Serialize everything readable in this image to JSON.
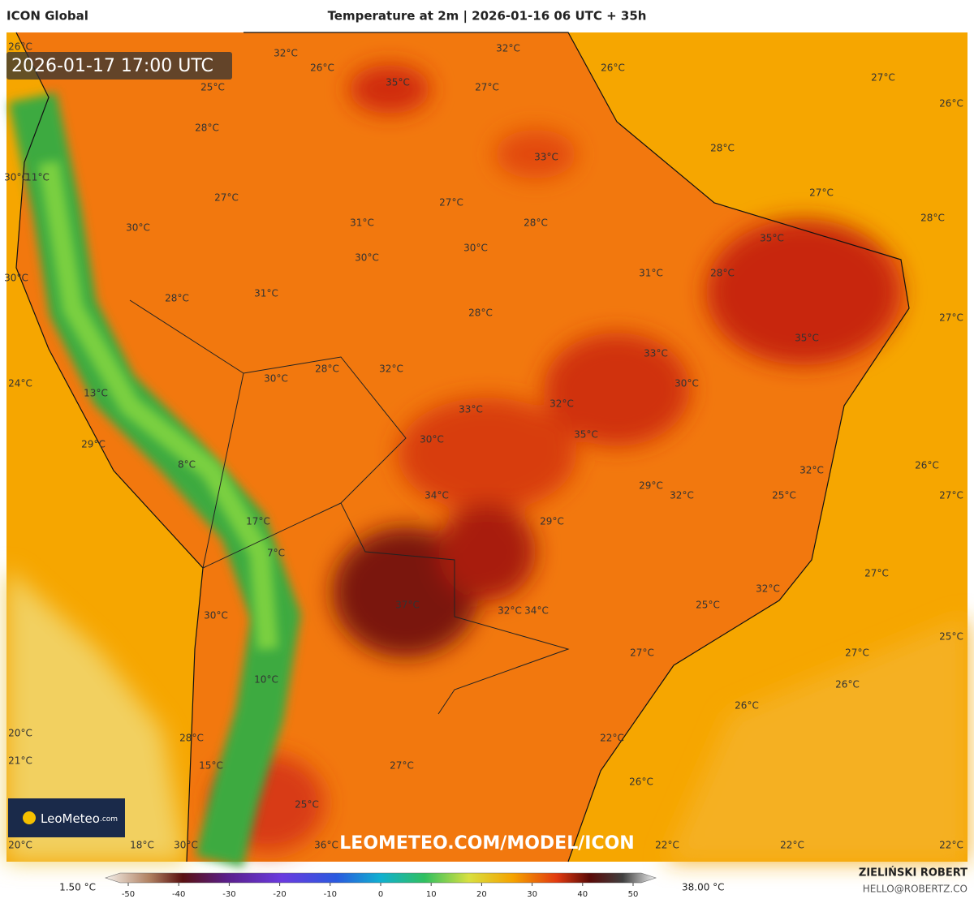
{
  "header": {
    "model": "ICON Global",
    "title": "Temperature at 2m | 2026-01-16 06 UTC + 35h"
  },
  "timestamp": "2026-01-17 17:00 UTC",
  "labels": [
    "26°C",
    "32°C",
    "32°C",
    "26°C",
    "26°C",
    "27°C",
    "25°C",
    "35°C",
    "27°C",
    "26°C",
    "28°C",
    "33°C",
    "28°C",
    "30°C",
    "11°C",
    "27°C",
    "27°C",
    "27°C",
    "31°C",
    "28°C",
    "28°C",
    "30°C",
    "35°C",
    "30°C",
    "30°C",
    "31°C",
    "28°C",
    "30°C",
    "31°C",
    "28°C",
    "28°C",
    "27°C",
    "35°C",
    "33°C",
    "32°C",
    "28°C",
    "30°C",
    "30°C",
    "24°C",
    "13°C",
    "32°C",
    "33°C",
    "35°C",
    "30°C",
    "29°C",
    "8°C",
    "26°C",
    "32°C",
    "29°C",
    "32°C",
    "34°C",
    "25°C",
    "27°C",
    "29°C",
    "17°C",
    "7°C",
    "27°C",
    "32°C",
    "37°C",
    "32°C",
    "34°C",
    "25°C",
    "30°C",
    "25°C",
    "27°C",
    "27°C",
    "10°C",
    "26°C",
    "26°C",
    "20°C",
    "22°C",
    "28°C",
    "21°C",
    "27°C",
    "15°C",
    "26°C",
    "25°C",
    "18°C",
    "30°C",
    "36°C",
    "22°C",
    "22°C",
    "22°C",
    "20°C"
  ],
  "watermark": "LEOMETEO.COM/MODEL/ICON",
  "logo": {
    "name": "LeoMeteo",
    "suffix": ".com"
  },
  "legend": {
    "min_label": "1.50 °C",
    "max_label": "38.00 °C",
    "ticks": [
      -50,
      -40,
      -30,
      -20,
      -10,
      0,
      10,
      20,
      30,
      40,
      50
    ]
  },
  "credits": {
    "author": "ZIELIŃSKI ROBERT",
    "email": "HELLO@ROBERTZ.CO"
  }
}
